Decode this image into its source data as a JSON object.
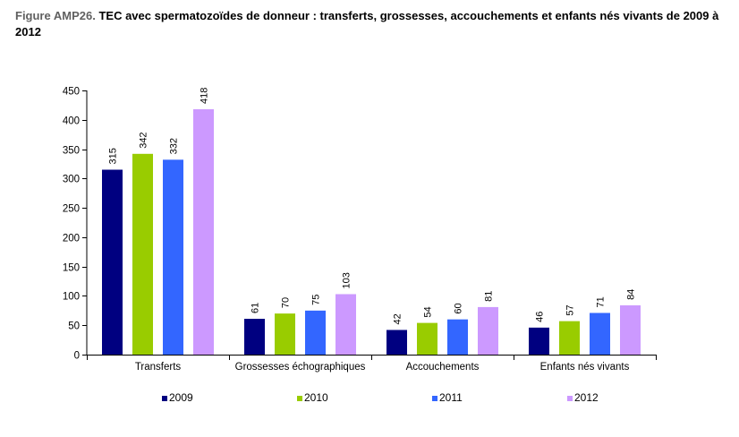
{
  "figure": {
    "label": "Figure AMP26.",
    "title": "TEC avec spermatozoïdes de donneur : transferts, grossesses, accouchements et enfants nés vivants de 2009 à 2012"
  },
  "chart_data": {
    "type": "bar",
    "title": "TEC avec spermatozoïdes de donneur : transferts, grossesses, accouchements et enfants nés vivants de 2009 à 2012",
    "categories": [
      "Transferts",
      "Grossesses échographiques",
      "Accouchements",
      "Enfants nés vivants"
    ],
    "series": [
      {
        "name": "2009",
        "values": [
          315,
          61,
          42,
          46
        ],
        "color": "#000080"
      },
      {
        "name": "2010",
        "values": [
          342,
          70,
          54,
          57
        ],
        "color": "#99CC00"
      },
      {
        "name": "2011",
        "values": [
          332,
          75,
          60,
          71
        ],
        "color": "#3366FF"
      },
      {
        "name": "2012",
        "values": [
          418,
          103,
          81,
          84
        ],
        "color": "#CC99FF"
      }
    ],
    "xlabel": "",
    "ylabel": "",
    "ylim": [
      0,
      450
    ],
    "yticks": [
      0,
      50,
      100,
      150,
      200,
      250,
      300,
      350,
      400,
      450
    ],
    "data_labels": true,
    "data_label_rotation": "vertical",
    "grid": false,
    "legend_position": "bottom"
  }
}
